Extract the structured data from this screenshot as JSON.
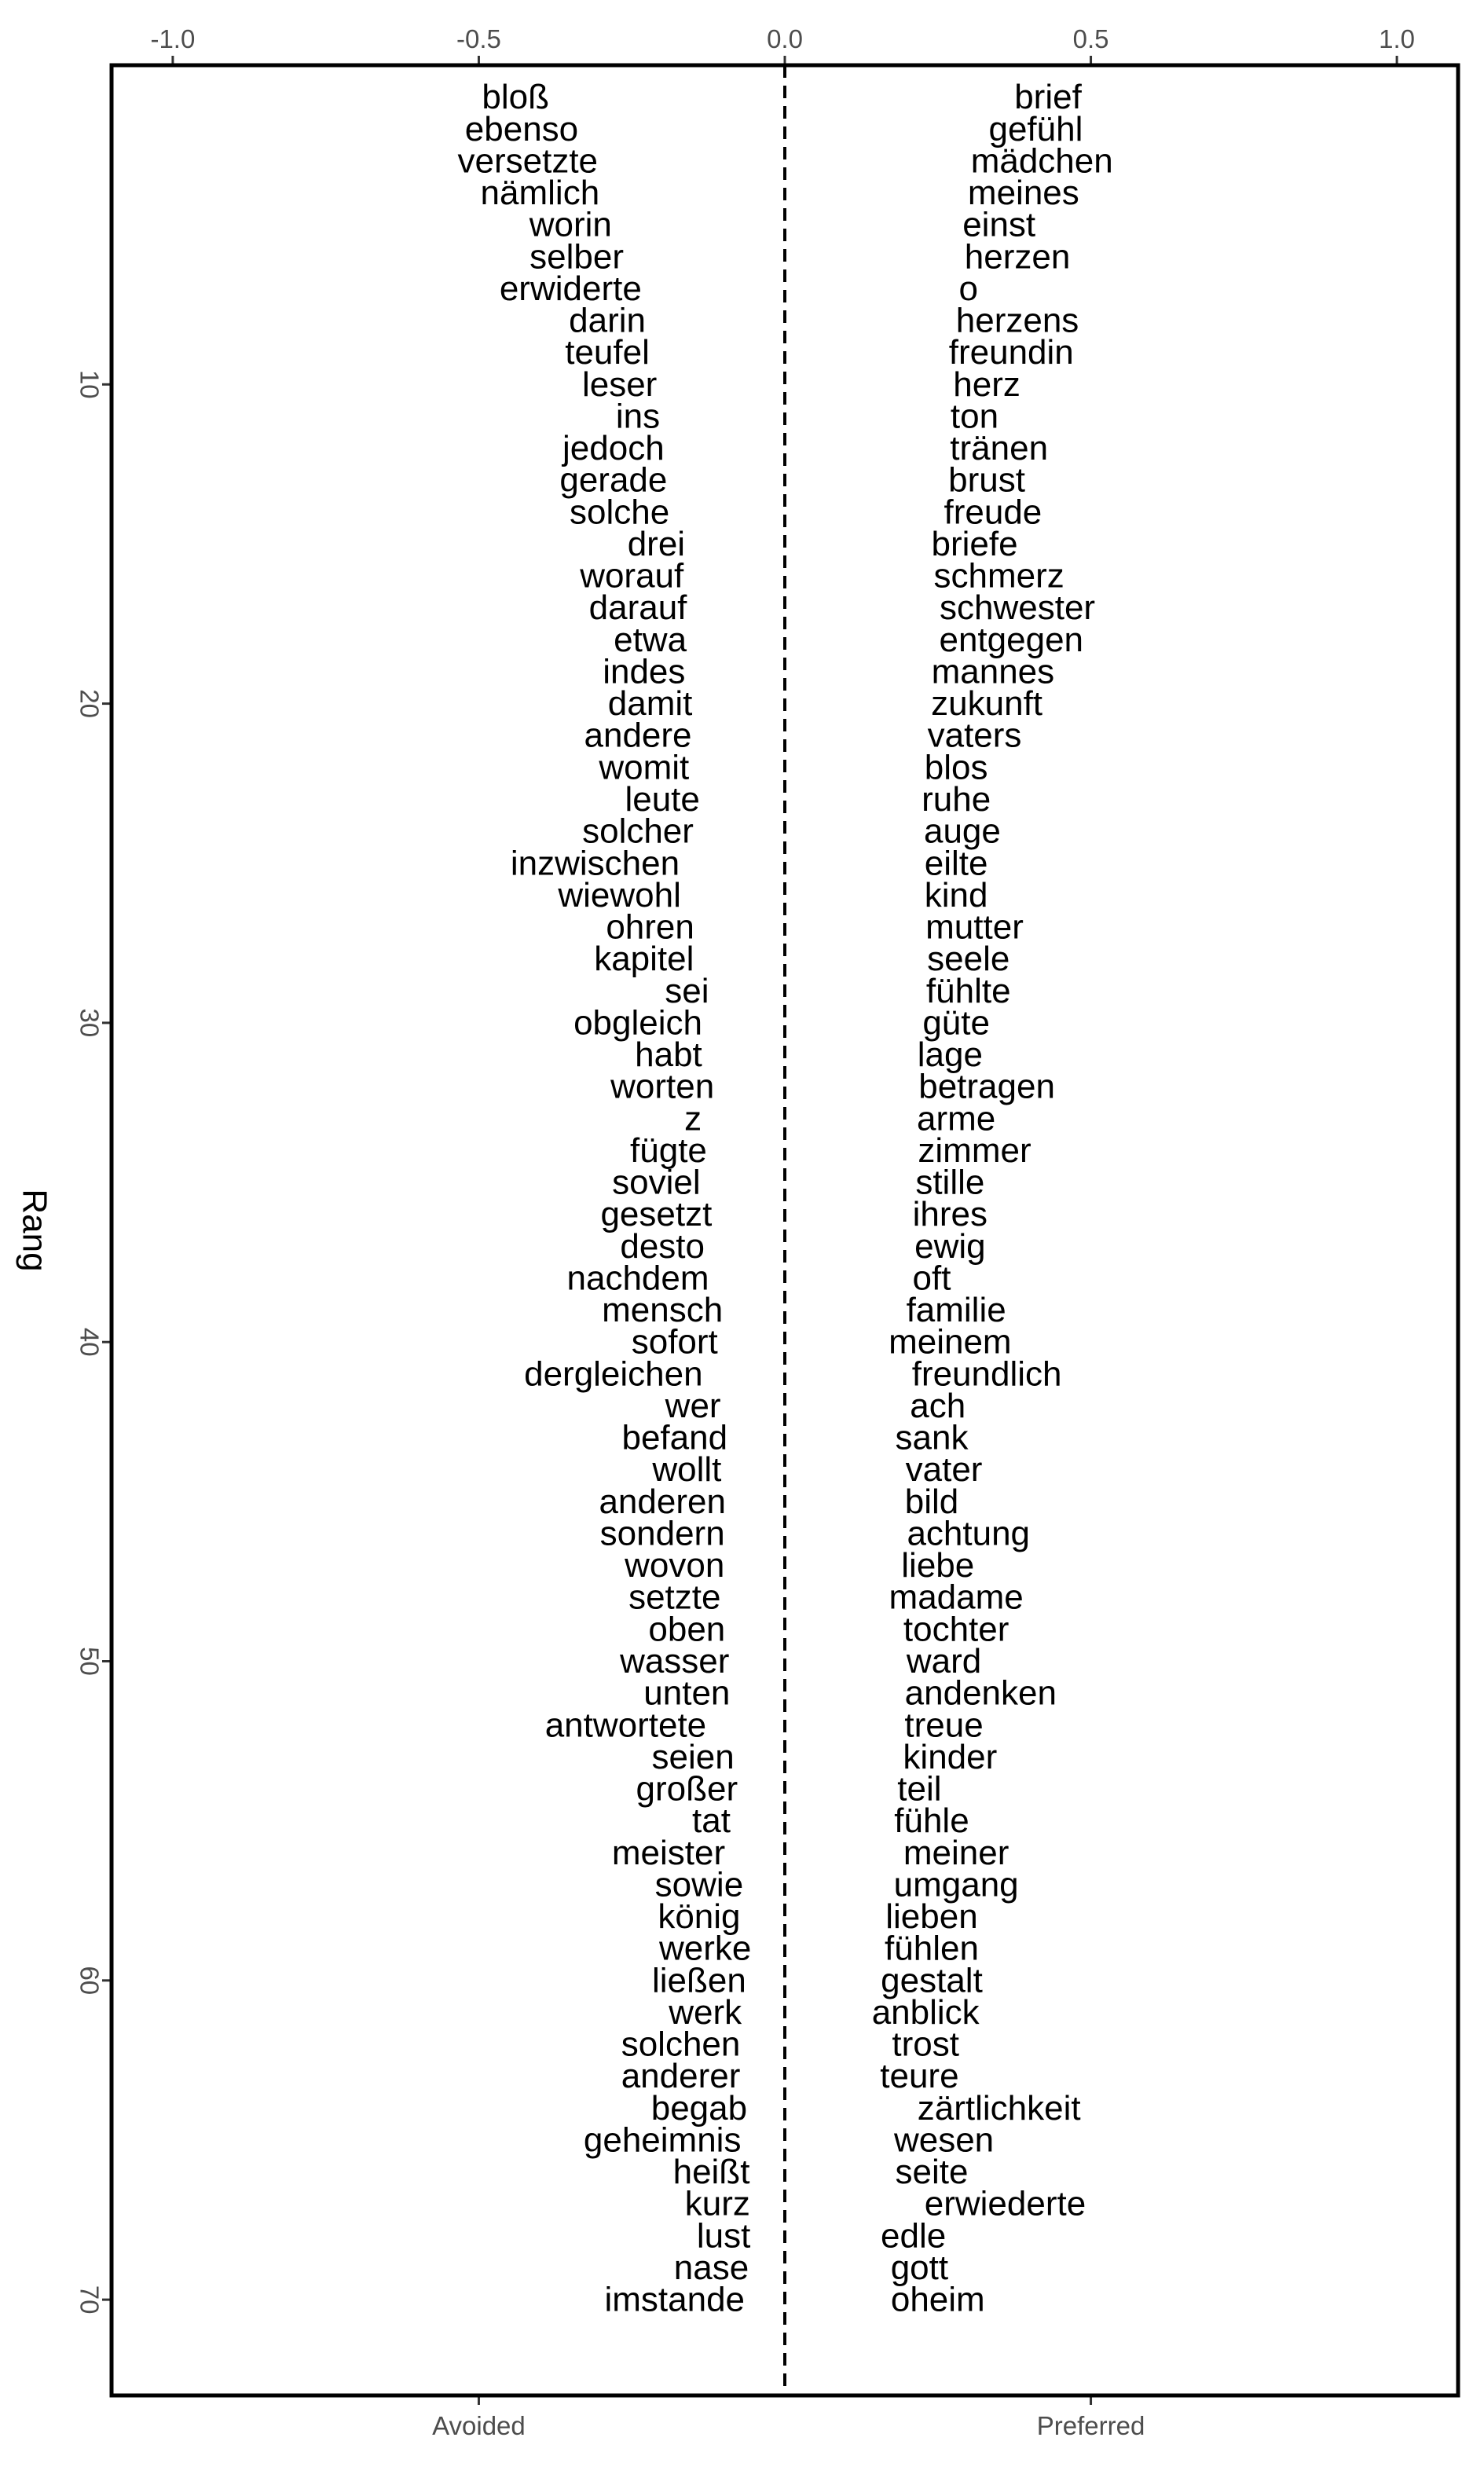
{
  "chart_data": {
    "type": "scatter",
    "title": "",
    "ylabel": "Rang",
    "xlim": [
      -1.1,
      1.1
    ],
    "ylim": [
      73,
      0
    ],
    "top_axis_ticks": [
      -1.0,
      -0.5,
      0.0,
      0.5,
      1.0
    ],
    "top_axis_tick_labels": [
      "-1.0",
      "-0.5",
      "0.0",
      "0.5",
      "1.0"
    ],
    "y_ticks": [
      10,
      20,
      30,
      40,
      50,
      60,
      70
    ],
    "y_tick_labels": [
      "10",
      "20",
      "30",
      "40",
      "50",
      "60",
      "70"
    ],
    "bottom_categories": [
      "Avoided",
      "Preferred"
    ],
    "zero_line": "dashed",
    "grid": false,
    "series": [
      {
        "name": "Avoided",
        "points": [
          {
            "rank": 1,
            "x": -0.44,
            "word": "bloß"
          },
          {
            "rank": 2,
            "x": -0.43,
            "word": "ebenso"
          },
          {
            "rank": 3,
            "x": -0.42,
            "word": "versetzte"
          },
          {
            "rank": 4,
            "x": -0.4,
            "word": "nämlich"
          },
          {
            "rank": 5,
            "x": -0.35,
            "word": "worin"
          },
          {
            "rank": 6,
            "x": -0.34,
            "word": "selber"
          },
          {
            "rank": 7,
            "x": -0.35,
            "word": "erwiderte"
          },
          {
            "rank": 8,
            "x": -0.29,
            "word": "darin"
          },
          {
            "rank": 9,
            "x": -0.29,
            "word": "teufel"
          },
          {
            "rank": 10,
            "x": -0.27,
            "word": "leser"
          },
          {
            "rank": 11,
            "x": -0.24,
            "word": "ins"
          },
          {
            "rank": 12,
            "x": -0.28,
            "word": "jedoch"
          },
          {
            "rank": 13,
            "x": -0.28,
            "word": "gerade"
          },
          {
            "rank": 14,
            "x": -0.27,
            "word": "solche"
          },
          {
            "rank": 15,
            "x": -0.21,
            "word": "drei"
          },
          {
            "rank": 16,
            "x": -0.25,
            "word": "worauf"
          },
          {
            "rank": 17,
            "x": -0.24,
            "word": "darauf"
          },
          {
            "rank": 18,
            "x": -0.22,
            "word": "etwa"
          },
          {
            "rank": 19,
            "x": -0.23,
            "word": "indes"
          },
          {
            "rank": 20,
            "x": -0.22,
            "word": "damit"
          },
          {
            "rank": 21,
            "x": -0.24,
            "word": "andere"
          },
          {
            "rank": 22,
            "x": -0.23,
            "word": "womit"
          },
          {
            "rank": 23,
            "x": -0.2,
            "word": "leute"
          },
          {
            "rank": 24,
            "x": -0.24,
            "word": "solcher"
          },
          {
            "rank": 25,
            "x": -0.31,
            "word": "inzwischen"
          },
          {
            "rank": 26,
            "x": -0.27,
            "word": "wiewohl"
          },
          {
            "rank": 27,
            "x": -0.22,
            "word": "ohren"
          },
          {
            "rank": 28,
            "x": -0.23,
            "word": "kapitel"
          },
          {
            "rank": 29,
            "x": -0.16,
            "word": "sei"
          },
          {
            "rank": 30,
            "x": -0.24,
            "word": "obgleich"
          },
          {
            "rank": 31,
            "x": -0.19,
            "word": "habt"
          },
          {
            "rank": 32,
            "x": -0.2,
            "word": "worten"
          },
          {
            "rank": 33,
            "x": -0.15,
            "word": "z"
          },
          {
            "rank": 34,
            "x": -0.19,
            "word": "fügte"
          },
          {
            "rank": 35,
            "x": -0.21,
            "word": "soviel"
          },
          {
            "rank": 36,
            "x": -0.21,
            "word": "gesetzt"
          },
          {
            "rank": 37,
            "x": -0.2,
            "word": "desto"
          },
          {
            "rank": 38,
            "x": -0.24,
            "word": "nachdem"
          },
          {
            "rank": 39,
            "x": -0.2,
            "word": "mensch"
          },
          {
            "rank": 40,
            "x": -0.18,
            "word": "sofort"
          },
          {
            "rank": 41,
            "x": -0.28,
            "word": "dergleichen"
          },
          {
            "rank": 42,
            "x": -0.15,
            "word": "wer"
          },
          {
            "rank": 43,
            "x": -0.18,
            "word": "befand"
          },
          {
            "rank": 44,
            "x": -0.16,
            "word": "wollt"
          },
          {
            "rank": 45,
            "x": -0.2,
            "word": "anderen"
          },
          {
            "rank": 46,
            "x": -0.2,
            "word": "sondern"
          },
          {
            "rank": 47,
            "x": -0.18,
            "word": "wovon"
          },
          {
            "rank": 48,
            "x": -0.18,
            "word": "setzte"
          },
          {
            "rank": 49,
            "x": -0.16,
            "word": "oben"
          },
          {
            "rank": 50,
            "x": -0.18,
            "word": "wasser"
          },
          {
            "rank": 51,
            "x": -0.16,
            "word": "unten"
          },
          {
            "rank": 52,
            "x": -0.26,
            "word": "antwortete"
          },
          {
            "rank": 53,
            "x": -0.15,
            "word": "seien"
          },
          {
            "rank": 54,
            "x": -0.16,
            "word": "großer"
          },
          {
            "rank": 55,
            "x": -0.12,
            "word": "tat"
          },
          {
            "rank": 56,
            "x": -0.19,
            "word": "meister"
          },
          {
            "rank": 57,
            "x": -0.14,
            "word": "sowie"
          },
          {
            "rank": 58,
            "x": -0.14,
            "word": "könig"
          },
          {
            "rank": 59,
            "x": -0.13,
            "word": "werke"
          },
          {
            "rank": 60,
            "x": -0.14,
            "word": "ließen"
          },
          {
            "rank": 61,
            "x": -0.13,
            "word": "werk"
          },
          {
            "rank": 62,
            "x": -0.17,
            "word": "solchen"
          },
          {
            "rank": 63,
            "x": -0.17,
            "word": "anderer"
          },
          {
            "rank": 64,
            "x": -0.14,
            "word": "begab"
          },
          {
            "rank": 65,
            "x": -0.2,
            "word": "geheimnis"
          },
          {
            "rank": 66,
            "x": -0.12,
            "word": "heißt"
          },
          {
            "rank": 67,
            "x": -0.11,
            "word": "kurz"
          },
          {
            "rank": 68,
            "x": -0.1,
            "word": "lust"
          },
          {
            "rank": 69,
            "x": -0.12,
            "word": "nase"
          },
          {
            "rank": 70,
            "x": -0.18,
            "word": "imstande"
          }
        ]
      },
      {
        "name": "Preferred",
        "points": [
          {
            "rank": 1,
            "x": 0.43,
            "word": "brief"
          },
          {
            "rank": 2,
            "x": 0.41,
            "word": "gefühl"
          },
          {
            "rank": 3,
            "x": 0.42,
            "word": "mädchen"
          },
          {
            "rank": 4,
            "x": 0.39,
            "word": "meines"
          },
          {
            "rank": 5,
            "x": 0.35,
            "word": "einst"
          },
          {
            "rank": 6,
            "x": 0.38,
            "word": "herzen"
          },
          {
            "rank": 7,
            "x": 0.3,
            "word": "o"
          },
          {
            "rank": 8,
            "x": 0.38,
            "word": "herzens"
          },
          {
            "rank": 9,
            "x": 0.37,
            "word": "freundin"
          },
          {
            "rank": 10,
            "x": 0.33,
            "word": "herz"
          },
          {
            "rank": 11,
            "x": 0.31,
            "word": "ton"
          },
          {
            "rank": 12,
            "x": 0.35,
            "word": "tränen"
          },
          {
            "rank": 13,
            "x": 0.33,
            "word": "brust"
          },
          {
            "rank": 14,
            "x": 0.34,
            "word": "freude"
          },
          {
            "rank": 15,
            "x": 0.31,
            "word": "briefe"
          },
          {
            "rank": 16,
            "x": 0.35,
            "word": "schmerz"
          },
          {
            "rank": 17,
            "x": 0.38,
            "word": "schwester"
          },
          {
            "rank": 18,
            "x": 0.37,
            "word": "entgegen"
          },
          {
            "rank": 19,
            "x": 0.34,
            "word": "mannes"
          },
          {
            "rank": 20,
            "x": 0.33,
            "word": "zukunft"
          },
          {
            "rank": 21,
            "x": 0.31,
            "word": "vaters"
          },
          {
            "rank": 22,
            "x": 0.28,
            "word": "blos"
          },
          {
            "rank": 23,
            "x": 0.28,
            "word": "ruhe"
          },
          {
            "rank": 24,
            "x": 0.29,
            "word": "auge"
          },
          {
            "rank": 25,
            "x": 0.28,
            "word": "eilte"
          },
          {
            "rank": 26,
            "x": 0.28,
            "word": "kind"
          },
          {
            "rank": 27,
            "x": 0.31,
            "word": "mutter"
          },
          {
            "rank": 28,
            "x": 0.3,
            "word": "seele"
          },
          {
            "rank": 29,
            "x": 0.3,
            "word": "fühlte"
          },
          {
            "rank": 30,
            "x": 0.28,
            "word": "güte"
          },
          {
            "rank": 31,
            "x": 0.27,
            "word": "lage"
          },
          {
            "rank": 32,
            "x": 0.33,
            "word": "betragen"
          },
          {
            "rank": 33,
            "x": 0.28,
            "word": "arme"
          },
          {
            "rank": 34,
            "x": 0.31,
            "word": "zimmer"
          },
          {
            "rank": 35,
            "x": 0.27,
            "word": "stille"
          },
          {
            "rank": 36,
            "x": 0.27,
            "word": "ihres"
          },
          {
            "rank": 37,
            "x": 0.27,
            "word": "ewig"
          },
          {
            "rank": 38,
            "x": 0.24,
            "word": "oft"
          },
          {
            "rank": 39,
            "x": 0.28,
            "word": "familie"
          },
          {
            "rank": 40,
            "x": 0.27,
            "word": "meinem"
          },
          {
            "rank": 41,
            "x": 0.33,
            "word": "freundlich"
          },
          {
            "rank": 42,
            "x": 0.25,
            "word": "ach"
          },
          {
            "rank": 43,
            "x": 0.24,
            "word": "sank"
          },
          {
            "rank": 44,
            "x": 0.26,
            "word": "vater"
          },
          {
            "rank": 45,
            "x": 0.24,
            "word": "bild"
          },
          {
            "rank": 46,
            "x": 0.3,
            "word": "achtung"
          },
          {
            "rank": 47,
            "x": 0.25,
            "word": "liebe"
          },
          {
            "rank": 48,
            "x": 0.28,
            "word": "madame"
          },
          {
            "rank": 49,
            "x": 0.28,
            "word": "tochter"
          },
          {
            "rank": 50,
            "x": 0.26,
            "word": "ward"
          },
          {
            "rank": 51,
            "x": 0.32,
            "word": "andenken"
          },
          {
            "rank": 52,
            "x": 0.26,
            "word": "treue"
          },
          {
            "rank": 53,
            "x": 0.27,
            "word": "kinder"
          },
          {
            "rank": 54,
            "x": 0.22,
            "word": "teil"
          },
          {
            "rank": 55,
            "x": 0.24,
            "word": "fühle"
          },
          {
            "rank": 56,
            "x": 0.28,
            "word": "meiner"
          },
          {
            "rank": 57,
            "x": 0.28,
            "word": "umgang"
          },
          {
            "rank": 58,
            "x": 0.24,
            "word": "lieben"
          },
          {
            "rank": 59,
            "x": 0.24,
            "word": "fühlen"
          },
          {
            "rank": 60,
            "x": 0.24,
            "word": "gestalt"
          },
          {
            "rank": 61,
            "x": 0.23,
            "word": "anblick"
          },
          {
            "rank": 62,
            "x": 0.23,
            "word": "trost"
          },
          {
            "rank": 63,
            "x": 0.22,
            "word": "teure"
          },
          {
            "rank": 64,
            "x": 0.35,
            "word": "zärtlichkeit"
          },
          {
            "rank": 65,
            "x": 0.26,
            "word": "wesen"
          },
          {
            "rank": 66,
            "x": 0.24,
            "word": "seite"
          },
          {
            "rank": 67,
            "x": 0.36,
            "word": "erwiederte"
          },
          {
            "rank": 68,
            "x": 0.21,
            "word": "edle"
          },
          {
            "rank": 69,
            "x": 0.22,
            "word": "gott"
          },
          {
            "rank": 70,
            "x": 0.25,
            "word": "oheim"
          }
        ]
      }
    ]
  },
  "colors": {
    "text": "#000000",
    "tick_text": "#4d4d4d",
    "frame": "#000000",
    "background": "#ffffff"
  }
}
